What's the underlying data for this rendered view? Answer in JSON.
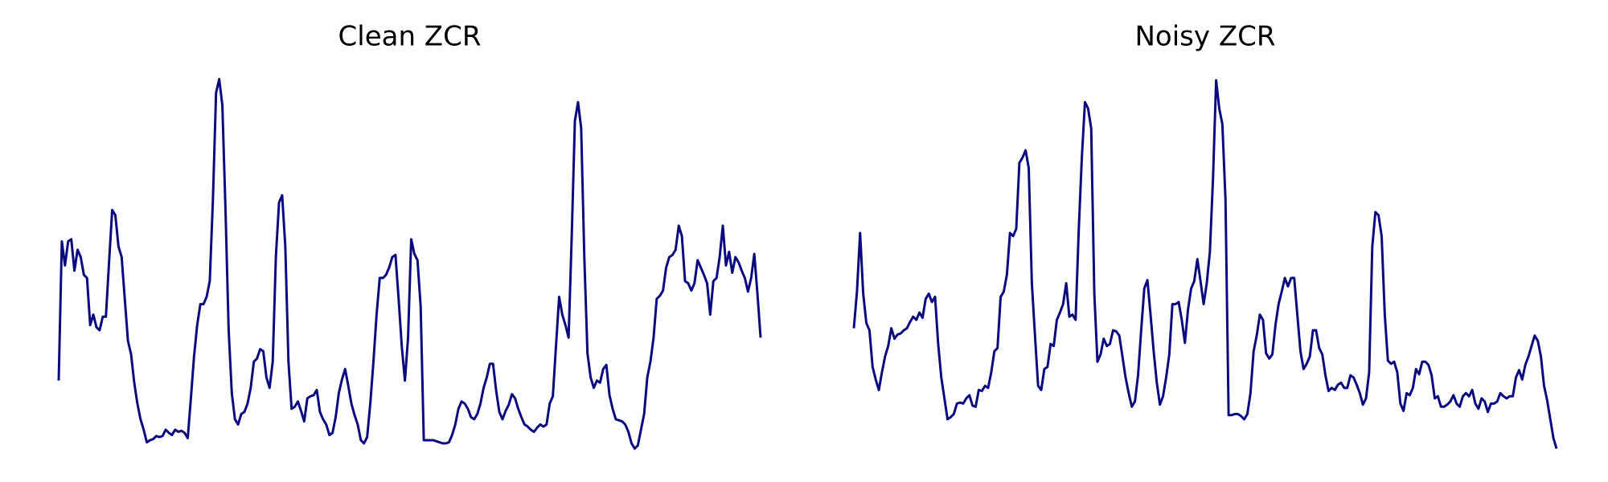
{
  "chart_data": [
    {
      "type": "line",
      "title": "Clean ZCR",
      "color": "#0a0a80",
      "ylim": [
        0,
        0.36
      ],
      "values": [
        0.067,
        0.2,
        0.177,
        0.2,
        0.202,
        0.172,
        0.192,
        0.185,
        0.168,
        0.165,
        0.12,
        0.13,
        0.118,
        0.115,
        0.128,
        0.128,
        0.18,
        0.23,
        0.225,
        0.195,
        0.185,
        0.145,
        0.105,
        0.092,
        0.065,
        0.045,
        0.03,
        0.02,
        0.008,
        0.01,
        0.011,
        0.014,
        0.013,
        0.014,
        0.02,
        0.017,
        0.015,
        0.02,
        0.018,
        0.019,
        0.017,
        0.012,
        0.05,
        0.09,
        0.12,
        0.14,
        0.14,
        0.147,
        0.162,
        0.24,
        0.342,
        0.355,
        0.33,
        0.23,
        0.115,
        0.055,
        0.03,
        0.025,
        0.035,
        0.037,
        0.045,
        0.06,
        0.085,
        0.088,
        0.097,
        0.095,
        0.07,
        0.06,
        0.085,
        0.185,
        0.237,
        0.244,
        0.195,
        0.085,
        0.04,
        0.042,
        0.047,
        0.038,
        0.028,
        0.05,
        0.052,
        0.053,
        0.058,
        0.037,
        0.03,
        0.025,
        0.015,
        0.017,
        0.032,
        0.055,
        0.068,
        0.078,
        0.062,
        0.045,
        0.034,
        0.025,
        0.01,
        0.007,
        0.013,
        0.045,
        0.085,
        0.13,
        0.165,
        0.165,
        0.168,
        0.175,
        0.185,
        0.187,
        0.145,
        0.1,
        0.067,
        0.108,
        0.202,
        0.188,
        0.182,
        0.138,
        0.01,
        0.01,
        0.01,
        0.01,
        0.009,
        0.008,
        0.007,
        0.007,
        0.008,
        0.015,
        0.025,
        0.04,
        0.047,
        0.045,
        0.04,
        0.032,
        0.03,
        0.035,
        0.045,
        0.06,
        0.07,
        0.083,
        0.083,
        0.057,
        0.037,
        0.03,
        0.038,
        0.044,
        0.054,
        0.05,
        0.04,
        0.032,
        0.025,
        0.023,
        0.02,
        0.018,
        0.022,
        0.025,
        0.023,
        0.025,
        0.045,
        0.052,
        0.1,
        0.147,
        0.13,
        0.12,
        0.108,
        0.205,
        0.315,
        0.333,
        0.308,
        0.185,
        0.093,
        0.07,
        0.06,
        0.067,
        0.065,
        0.078,
        0.082,
        0.053,
        0.04,
        0.03,
        0.029,
        0.028,
        0.025,
        0.018,
        0.007,
        0.002,
        0.005,
        0.02,
        0.035,
        0.07,
        0.085,
        0.108,
        0.145,
        0.148,
        0.153,
        0.175,
        0.185,
        0.187,
        0.192,
        0.215,
        0.205,
        0.162,
        0.16,
        0.153,
        0.16,
        0.182,
        0.175,
        0.168,
        0.16,
        0.13,
        0.162,
        0.165,
        0.185,
        0.215,
        0.177,
        0.19,
        0.17,
        0.185,
        0.18,
        0.172,
        0.165,
        0.152,
        0.165,
        0.188,
        0.15,
        0.108
      ]
    },
    {
      "type": "line",
      "title": "Noisy ZCR",
      "color": "#0a0a80",
      "ylim": [
        0,
        0.36
      ],
      "values": [
        0.117,
        0.152,
        0.208,
        0.15,
        0.122,
        0.115,
        0.08,
        0.068,
        0.058,
        0.075,
        0.09,
        0.1,
        0.117,
        0.107,
        0.111,
        0.112,
        0.115,
        0.117,
        0.123,
        0.128,
        0.125,
        0.132,
        0.127,
        0.145,
        0.15,
        0.142,
        0.147,
        0.102,
        0.07,
        0.05,
        0.03,
        0.032,
        0.035,
        0.045,
        0.046,
        0.045,
        0.05,
        0.053,
        0.043,
        0.042,
        0.058,
        0.057,
        0.062,
        0.06,
        0.075,
        0.095,
        0.098,
        0.147,
        0.152,
        0.168,
        0.208,
        0.205,
        0.212,
        0.275,
        0.28,
        0.287,
        0.27,
        0.16,
        0.11,
        0.062,
        0.058,
        0.078,
        0.08,
        0.102,
        0.1,
        0.125,
        0.132,
        0.14,
        0.16,
        0.128,
        0.13,
        0.125,
        0.21,
        0.28,
        0.333,
        0.327,
        0.308,
        0.15,
        0.085,
        0.092,
        0.107,
        0.1,
        0.102,
        0.115,
        0.114,
        0.11,
        0.09,
        0.07,
        0.055,
        0.042,
        0.047,
        0.072,
        0.115,
        0.155,
        0.163,
        0.13,
        0.095,
        0.065,
        0.044,
        0.052,
        0.07,
        0.092,
        0.14,
        0.14,
        0.142,
        0.125,
        0.103,
        0.135,
        0.155,
        0.162,
        0.183,
        0.162,
        0.14,
        0.16,
        0.19,
        0.26,
        0.354,
        0.327,
        0.312,
        0.24,
        0.034,
        0.034,
        0.035,
        0.035,
        0.033,
        0.03,
        0.035,
        0.055,
        0.095,
        0.11,
        0.13,
        0.125,
        0.093,
        0.088,
        0.092,
        0.12,
        0.14,
        0.152,
        0.165,
        0.157,
        0.165,
        0.165,
        0.13,
        0.095,
        0.078,
        0.083,
        0.09,
        0.115,
        0.115,
        0.098,
        0.092,
        0.072,
        0.057,
        0.06,
        0.058,
        0.063,
        0.065,
        0.06,
        0.06,
        0.072,
        0.07,
        0.063,
        0.055,
        0.044,
        0.05,
        0.075,
        0.195,
        0.228,
        0.225,
        0.205,
        0.13,
        0.086,
        0.083,
        0.085,
        0.075,
        0.045,
        0.038,
        0.055,
        0.053,
        0.06,
        0.078,
        0.073,
        0.085,
        0.085,
        0.082,
        0.072,
        0.05,
        0.052,
        0.042,
        0.042,
        0.044,
        0.047,
        0.053,
        0.045,
        0.042,
        0.052,
        0.055,
        0.052,
        0.058,
        0.045,
        0.04,
        0.05,
        0.047,
        0.037,
        0.045,
        0.045,
        0.047,
        0.055,
        0.052,
        0.05,
        0.052,
        0.052,
        0.07,
        0.077,
        0.068,
        0.082,
        0.09,
        0.1,
        0.11,
        0.105,
        0.09,
        0.062,
        0.048,
        0.03,
        0.012,
        0.002
      ]
    }
  ]
}
